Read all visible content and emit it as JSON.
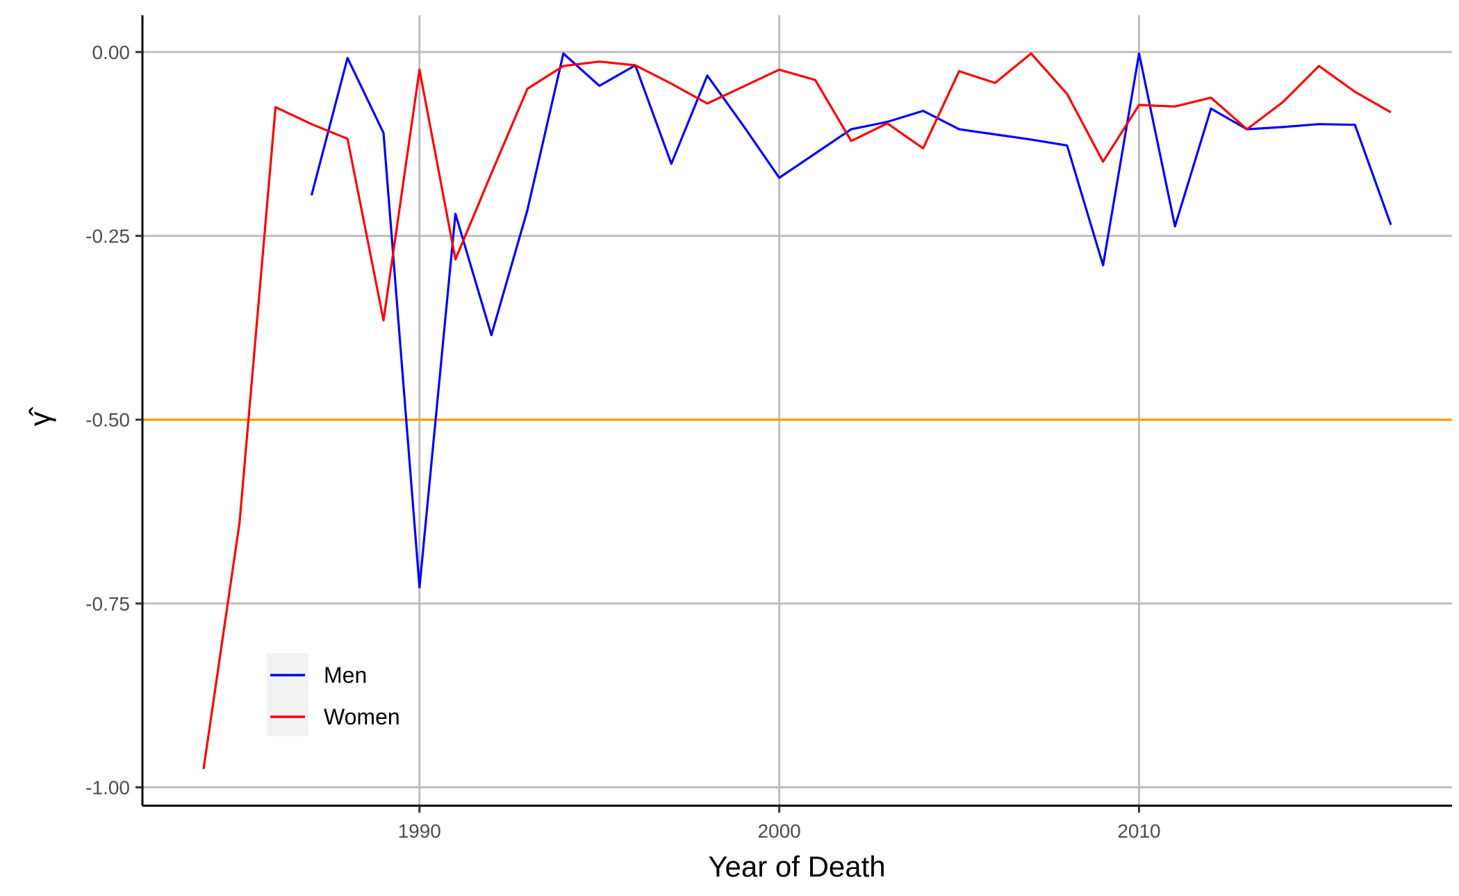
{
  "chart_data": {
    "type": "line",
    "xlabel": "Year of Death",
    "ylabel": "γ̂",
    "xlim": [
      1982.3,
      2018.7
    ],
    "ylim": [
      -1.025,
      0.05
    ],
    "x_ticks": [
      1990,
      2000,
      2010
    ],
    "x_tick_labels": [
      "1990",
      "2000",
      "2010"
    ],
    "y_ticks": [
      0,
      -0.25,
      -0.5,
      -0.75,
      -1
    ],
    "y_tick_labels": [
      "0.00",
      "-0.25",
      "-0.50",
      "-0.75",
      "-1.00"
    ],
    "grid": true,
    "reference_line": {
      "y": -0.5,
      "color": "#FFA500"
    },
    "legend_position": "bottom-left",
    "series": [
      {
        "name": "Men",
        "color": "#0000FF",
        "x": [
          1987,
          1988,
          1989,
          1990,
          1991,
          1992,
          1993,
          1994,
          1995,
          1996,
          1997,
          1998,
          1999,
          2000,
          2001,
          2002,
          2003,
          2004,
          2005,
          2006,
          2007,
          2008,
          2009,
          2010,
          2011,
          2012,
          2013,
          2014,
          2015,
          2016,
          2017
        ],
        "y": [
          -0.195,
          -0.008,
          -0.11,
          -0.728,
          -0.22,
          -0.385,
          -0.215,
          -0.002,
          -0.046,
          -0.018,
          -0.152,
          -0.032,
          -0.1,
          -0.171,
          -0.138,
          -0.105,
          -0.095,
          -0.08,
          -0.105,
          -0.112,
          -0.119,
          -0.127,
          -0.29,
          -0.002,
          -0.237,
          -0.077,
          -0.105,
          -0.102,
          -0.098,
          -0.099,
          -0.235
        ]
      },
      {
        "name": "Women",
        "color": "#FF0000",
        "x": [
          1984,
          1985,
          1986,
          1987,
          1988,
          1989,
          1990,
          1991,
          1992,
          1993,
          1994,
          1995,
          1996,
          1997,
          1998,
          1999,
          2000,
          2001,
          2002,
          2003,
          2004,
          2005,
          2006,
          2007,
          2008,
          2009,
          2010,
          2011,
          2012,
          2013,
          2014,
          2015,
          2016,
          2017
        ],
        "y": [
          -0.975,
          -0.64,
          -0.075,
          -0.098,
          -0.118,
          -0.365,
          -0.024,
          -0.282,
          -0.165,
          -0.05,
          -0.019,
          -0.013,
          -0.018,
          -0.043,
          -0.07,
          -0.047,
          -0.024,
          -0.038,
          -0.121,
          -0.097,
          -0.131,
          -0.026,
          -0.042,
          -0.002,
          -0.057,
          -0.149,
          -0.072,
          -0.074,
          -0.062,
          -0.105,
          -0.068,
          -0.019,
          -0.054,
          -0.082
        ]
      }
    ]
  }
}
